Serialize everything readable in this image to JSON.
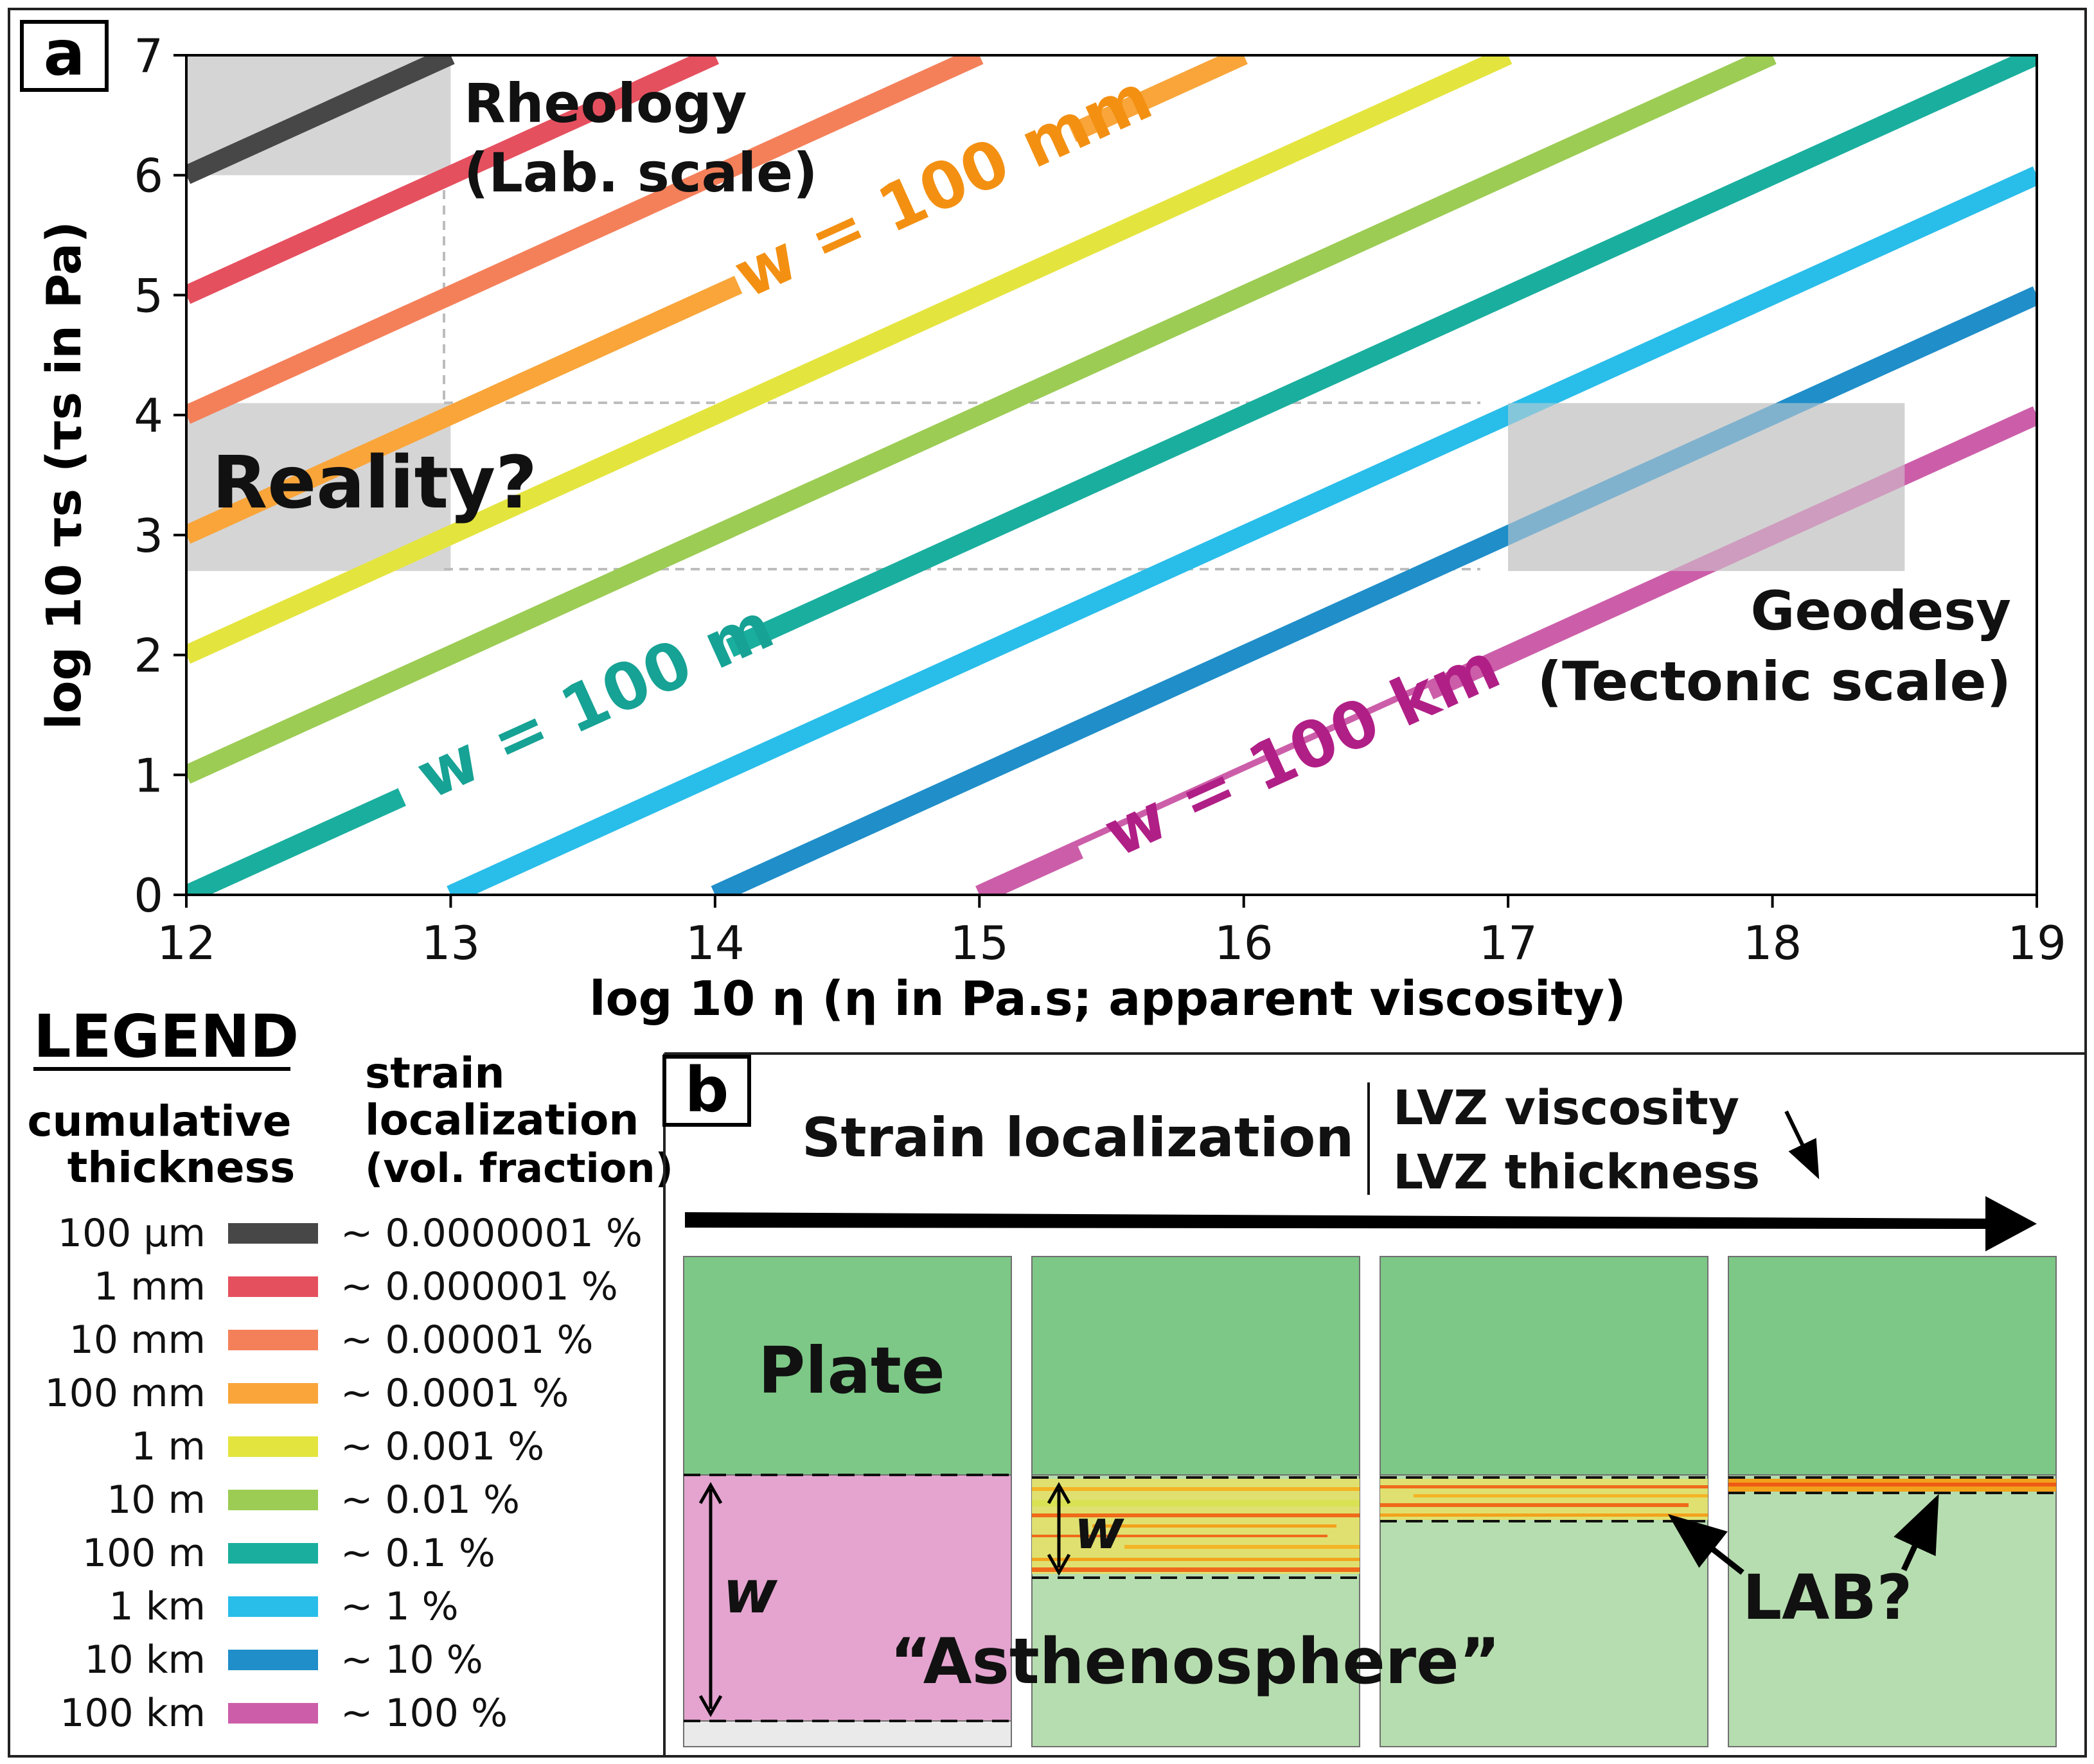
{
  "panel_a": {
    "label": "a",
    "rheology_title": "Rheology",
    "rheology_subtitle": "(Lab. scale)",
    "reality_label": "Reality?",
    "geodesy_title": "Geodesy",
    "geodesy_subtitle": "(Tectonic scale)",
    "annotation_100mm": "w = 100 mm",
    "annotation_100m": "w = 100 m",
    "annotation_100km": "w = 100 km"
  },
  "chart_data": {
    "type": "line",
    "title": "",
    "xlabel": "log 10 η  (η in Pa.s; apparent viscosity)",
    "ylabel": "log 10 τs  (τs in Pa)",
    "xlim": [
      12,
      19
    ],
    "ylim": [
      0,
      7
    ],
    "x_ticks": [
      "12",
      "13",
      "14",
      "15",
      "16",
      "17",
      "18",
      "19"
    ],
    "y_ticks": [
      "0",
      "1",
      "2",
      "3",
      "4",
      "5",
      "6",
      "7"
    ],
    "series": [
      {
        "name": "100 µm",
        "color": "#474747",
        "x": [
          12,
          13
        ],
        "y": [
          6,
          7
        ]
      },
      {
        "name": "1 mm",
        "color": "#e5505f",
        "x": [
          12,
          14
        ],
        "y": [
          5,
          7
        ]
      },
      {
        "name": "10 mm",
        "color": "#f4805a",
        "x": [
          12,
          15
        ],
        "y": [
          4,
          7
        ]
      },
      {
        "name": "100 mm",
        "color": "#f9a53a",
        "x": [
          12,
          16
        ],
        "y": [
          3,
          7
        ]
      },
      {
        "name": "1 m",
        "color": "#e4e43e",
        "x": [
          12,
          17
        ],
        "y": [
          2,
          7
        ]
      },
      {
        "name": "10 m",
        "color": "#9ccc54",
        "x": [
          12,
          18
        ],
        "y": [
          1,
          7
        ]
      },
      {
        "name": "100 m",
        "color": "#1aae9e",
        "x": [
          12,
          19
        ],
        "y": [
          0,
          7
        ]
      },
      {
        "name": "1 km",
        "color": "#29bde9",
        "x": [
          13,
          19
        ],
        "y": [
          0,
          6
        ]
      },
      {
        "name": "10 km",
        "color": "#1f8ec9",
        "x": [
          14,
          19
        ],
        "y": [
          0,
          5
        ]
      },
      {
        "name": "100 km",
        "color": "#cc5ea9",
        "x": [
          15,
          19
        ],
        "y": [
          0,
          4
        ]
      }
    ],
    "shaded_regions": [
      {
        "name": "Rheology (Lab. scale)",
        "x": [
          12,
          13
        ],
        "y": [
          6,
          7
        ]
      },
      {
        "name": "Reality?",
        "x": [
          12,
          13
        ],
        "y": [
          2.7,
          4.1
        ]
      },
      {
        "name": "Geodesy (Tectonic scale)",
        "x": [
          17,
          18.5
        ],
        "y": [
          2.7,
          4.1
        ]
      }
    ]
  },
  "legend": {
    "title": "LEGEND",
    "col1_header": [
      "cumulative",
      "thickness"
    ],
    "col2_header": [
      "strain",
      "localization",
      "(vol. fraction)"
    ],
    "items": [
      {
        "thickness": "100 µm",
        "fraction": "~ 0.0000001 %",
        "color": "#474747"
      },
      {
        "thickness": "1 mm",
        "fraction": "~ 0.000001 %",
        "color": "#e5505f"
      },
      {
        "thickness": "10 mm",
        "fraction": "~ 0.00001 %",
        "color": "#f4805a"
      },
      {
        "thickness": "100 mm",
        "fraction": "~ 0.0001 %",
        "color": "#f9a53a"
      },
      {
        "thickness": "1 m",
        "fraction": "~ 0.001 %",
        "color": "#e4e43e"
      },
      {
        "thickness": "10 m",
        "fraction": "~ 0.01 %",
        "color": "#9ccc54"
      },
      {
        "thickness": "100 m",
        "fraction": "~ 0.1 %",
        "color": "#1aae9e"
      },
      {
        "thickness": "1 km",
        "fraction": "~ 1 %",
        "color": "#29bde9"
      },
      {
        "thickness": "10 km",
        "fraction": "~ 10 %",
        "color": "#1f8ec9"
      },
      {
        "thickness": "100 km",
        "fraction": "~ 100 %",
        "color": "#cc5ea9"
      }
    ]
  },
  "panel_b": {
    "label": "b",
    "arrow_title": "Strain localization",
    "lvz_viscosity": "LVZ viscosity",
    "lvz_thickness": "LVZ thickness",
    "plate_label": "Plate",
    "asthenosphere_label": "“Asthenosphere”",
    "w_label": "w",
    "lab_label": "LAB?",
    "colors": {
      "plate": "#7dc887",
      "asthenosphere": "#b6ddaf",
      "lvz_thick": "#e4a4cf",
      "below": "#eaeaea"
    }
  }
}
